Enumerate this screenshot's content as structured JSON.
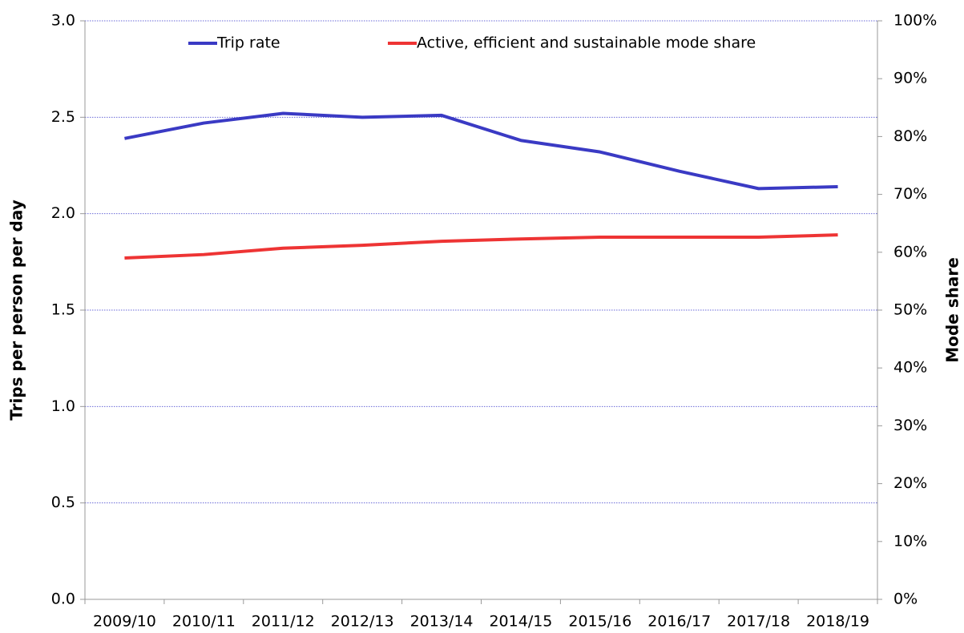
{
  "chart_data": {
    "type": "line",
    "ylabel": "Trips per person per day",
    "y2label": "Mode share",
    "categories": [
      "2009/10",
      "2010/11",
      "2011/12",
      "2012/13",
      "2013/14",
      "2014/15",
      "2015/16",
      "2016/17",
      "2017/18",
      "2018/19"
    ],
    "series": [
      {
        "name": "Trip rate",
        "color": "#3a3ac4",
        "values": [
          2.39,
          2.47,
          2.52,
          2.5,
          2.51,
          2.38,
          2.32,
          2.22,
          2.13,
          2.14
        ]
      },
      {
        "name": "Active, efficient and sustainable mode share",
        "color": "#ee3434",
        "axis": "y2",
        "values": [
          59.0,
          59.6,
          60.7,
          61.2,
          61.9,
          62.3,
          62.6,
          62.6,
          62.6,
          63.0
        ]
      }
    ],
    "ylim": [
      0,
      3
    ],
    "yticks": [
      {
        "value": 0,
        "label": "0.0"
      },
      0.5,
      {
        "value": 1,
        "label": "1.0"
      },
      1.5,
      {
        "value": 2,
        "label": "2.0"
      },
      2.5,
      {
        "value": 3,
        "label": "3.0"
      }
    ],
    "y2lim": [
      0,
      100
    ],
    "y2ticks": [
      {
        "value": 0,
        "label": "0%"
      },
      {
        "value": 10,
        "label": "10%"
      },
      {
        "value": 20,
        "label": "20%"
      },
      {
        "value": 30,
        "label": "30%"
      },
      {
        "value": 40,
        "label": "40%"
      },
      {
        "value": 50,
        "label": "50%"
      },
      {
        "value": 60,
        "label": "60%"
      },
      {
        "value": 70,
        "label": "70%"
      },
      {
        "value": 80,
        "label": "80%"
      },
      {
        "value": 90,
        "label": "90%"
      },
      {
        "value": 100,
        "label": "100%"
      }
    ],
    "grid": true,
    "legend": "top"
  }
}
